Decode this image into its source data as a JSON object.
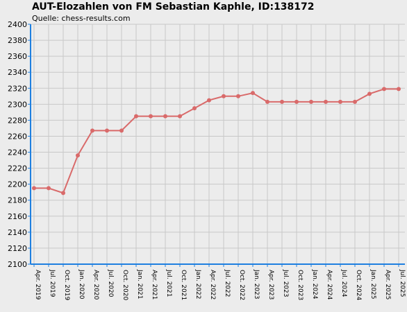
{
  "chart_data": {
    "type": "line",
    "title": "AUT-Elozahlen von FM Sebastian Kaphle, ID:138172",
    "subtitle": "Quelle: chess-results.com",
    "xlabel": "",
    "ylabel": "",
    "ylim": [
      2100,
      2400
    ],
    "y_ticks": [
      2100,
      2120,
      2140,
      2160,
      2180,
      2200,
      2220,
      2240,
      2260,
      2280,
      2300,
      2320,
      2340,
      2360,
      2380,
      2400
    ],
    "grid": true,
    "categories": [
      "Apr. 2019",
      "Jul. 2019",
      "Oct. 2019",
      "Jan. 2020",
      "Apr. 2020",
      "Jul. 2020",
      "Oct. 2020",
      "Jan. 2021",
      "Apr. 2021",
      "Jul. 2021",
      "Oct. 2021",
      "Jan. 2022",
      "Apr. 2022",
      "Jul. 2022",
      "Oct. 2022",
      "Jan. 2023",
      "Apr. 2023",
      "Jul. 2023",
      "Oct. 2023",
      "Jan. 2024",
      "Apr. 2024",
      "Jul. 2024",
      "Oct. 2024",
      "Jan. 2025",
      "Apr. 2025",
      "Jul. 2025"
    ],
    "series": [
      {
        "values": [
          2195,
          2195,
          2189,
          2236,
          2267,
          2267,
          2267,
          2285,
          2285,
          2285,
          2285,
          2295,
          2305,
          2310,
          2310,
          2314,
          2303,
          2303,
          2303,
          2303,
          2303,
          2303,
          2303,
          2313,
          2319,
          2319
        ]
      }
    ],
    "colors": {
      "line": "#d96a6a",
      "marker": "#d96a6a",
      "axis": "#1e7fe0",
      "grid": "#c8c8c8",
      "background": "#ececec"
    }
  }
}
